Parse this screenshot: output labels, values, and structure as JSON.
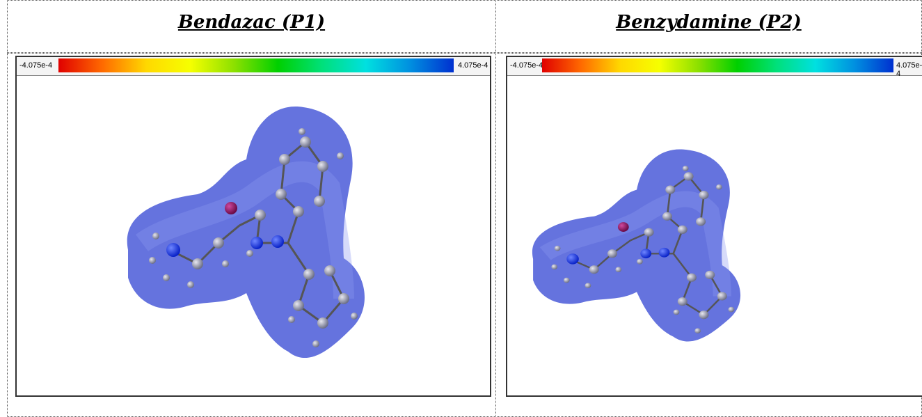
{
  "panels": [
    {
      "title": "Bendazac (P1)",
      "scale_min_label": "-4.075e-4",
      "scale_max_label": "4.075e-4"
    },
    {
      "title": "Benzydamine (P2)",
      "scale_min_label": "-4.075e-4",
      "scale_max_label": "4.075e-4"
    }
  ]
}
